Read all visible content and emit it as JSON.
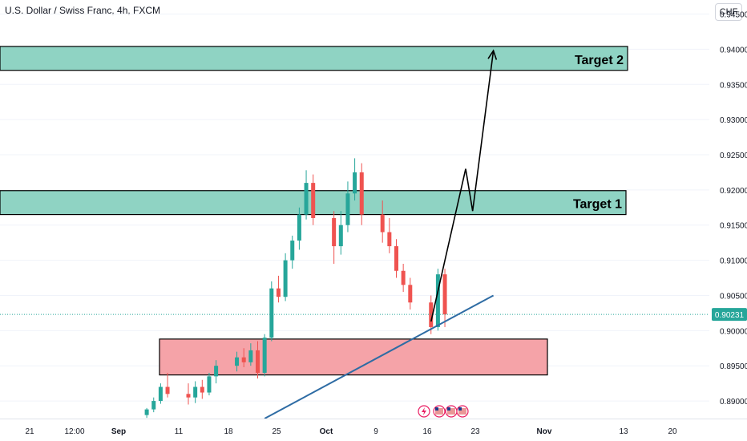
{
  "title": "U.S. Dollar / Swiss Franc, 4h, FXCM",
  "currency": "CHF",
  "colors": {
    "up": "#26a69a",
    "down": "#ef5350",
    "zone_target": "#8fd3c3",
    "zone_support": "#f5a3a8",
    "trendline": "#2e6ca4",
    "price_line": "#26a69a",
    "price_badge": "#26a69a",
    "event_icon": "#e91e63"
  },
  "chart_data": {
    "type": "candlestick",
    "ylim": [
      0.8875,
      0.947
    ],
    "y_ticks": [
      "0.94500",
      "0.94000",
      "0.93500",
      "0.93000",
      "0.92500",
      "0.92000",
      "0.91500",
      "0.91000",
      "0.90500",
      "0.90000",
      "0.89500",
      "0.89000"
    ],
    "x_ticks": [
      "21",
      "12:00",
      "Sep",
      "11",
      "18",
      "25",
      "Oct",
      "9",
      "16",
      "23",
      "Nov",
      "13",
      "20"
    ],
    "current_price": "0.90231",
    "zones": [
      {
        "label": "Target 2",
        "low": 0.937,
        "high": 0.9404,
        "kind": "target"
      },
      {
        "label": "Target 1",
        "low": 0.9165,
        "high": 0.9199,
        "kind": "target"
      },
      {
        "label": "",
        "low": 0.8937,
        "high": 0.8988,
        "kind": "support"
      }
    ],
    "trendline": {
      "x_start": "Sep 22",
      "y_start": 0.8875,
      "x_end": "Oct 25",
      "y_end": 0.905
    },
    "projection": [
      {
        "x": "Oct 16",
        "y": 0.9013
      },
      {
        "x": "Oct 21",
        "y": 0.923
      },
      {
        "x": "Oct 22",
        "y": 0.917
      },
      {
        "x": "Oct 25",
        "y": 0.9398
      }
    ],
    "candles": [
      {
        "d": "Sep 5",
        "o": 0.888,
        "h": 0.889,
        "l": 0.8876,
        "c": 0.8888
      },
      {
        "d": "Sep 6",
        "o": 0.8888,
        "h": 0.8905,
        "l": 0.8884,
        "c": 0.89
      },
      {
        "d": "Sep 7",
        "o": 0.89,
        "h": 0.8925,
        "l": 0.8896,
        "c": 0.892
      },
      {
        "d": "Sep 8",
        "o": 0.892,
        "h": 0.894,
        "l": 0.8905,
        "c": 0.891
      },
      {
        "d": "Sep 11",
        "o": 0.891,
        "h": 0.8925,
        "l": 0.8895,
        "c": 0.8905
      },
      {
        "d": "Sep 12",
        "o": 0.8905,
        "h": 0.8928,
        "l": 0.8897,
        "c": 0.892
      },
      {
        "d": "Sep 13",
        "o": 0.892,
        "h": 0.893,
        "l": 0.8903,
        "c": 0.8912
      },
      {
        "d": "Sep 14",
        "o": 0.8912,
        "h": 0.894,
        "l": 0.8908,
        "c": 0.8935
      },
      {
        "d": "Sep 15",
        "o": 0.8935,
        "h": 0.8958,
        "l": 0.8925,
        "c": 0.895
      },
      {
        "d": "Sep 18",
        "o": 0.895,
        "h": 0.897,
        "l": 0.8942,
        "c": 0.8962
      },
      {
        "d": "Sep 19",
        "o": 0.8962,
        "h": 0.8975,
        "l": 0.8948,
        "c": 0.8955
      },
      {
        "d": "Sep 20",
        "o": 0.8955,
        "h": 0.8982,
        "l": 0.895,
        "c": 0.8972
      },
      {
        "d": "Sep 21",
        "o": 0.8972,
        "h": 0.8985,
        "l": 0.8932,
        "c": 0.894
      },
      {
        "d": "Sep 22",
        "o": 0.894,
        "h": 0.8995,
        "l": 0.8935,
        "c": 0.899
      },
      {
        "d": "Sep 23",
        "o": 0.899,
        "h": 0.907,
        "l": 0.8985,
        "c": 0.906
      },
      {
        "d": "Sep 24",
        "o": 0.906,
        "h": 0.9078,
        "l": 0.904,
        "c": 0.9048
      },
      {
        "d": "Sep 25",
        "o": 0.9048,
        "h": 0.911,
        "l": 0.9042,
        "c": 0.91
      },
      {
        "d": "Sep 26",
        "o": 0.91,
        "h": 0.9135,
        "l": 0.9088,
        "c": 0.9128
      },
      {
        "d": "Sep 27",
        "o": 0.9128,
        "h": 0.9175,
        "l": 0.9115,
        "c": 0.9165
      },
      {
        "d": "Sep 28",
        "o": 0.9165,
        "h": 0.9228,
        "l": 0.9158,
        "c": 0.921
      },
      {
        "d": "Sep 29",
        "o": 0.921,
        "h": 0.9222,
        "l": 0.915,
        "c": 0.916
      },
      {
        "d": "Oct 2",
        "o": 0.916,
        "h": 0.917,
        "l": 0.9095,
        "c": 0.912
      },
      {
        "d": "Oct 3",
        "o": 0.912,
        "h": 0.917,
        "l": 0.9108,
        "c": 0.915
      },
      {
        "d": "Oct 4",
        "o": 0.915,
        "h": 0.9212,
        "l": 0.914,
        "c": 0.9195
      },
      {
        "d": "Oct 5",
        "o": 0.9195,
        "h": 0.9245,
        "l": 0.9185,
        "c": 0.9225
      },
      {
        "d": "Oct 6",
        "o": 0.9225,
        "h": 0.9238,
        "l": 0.915,
        "c": 0.9165
      },
      {
        "d": "Oct 9",
        "o": 0.9165,
        "h": 0.9185,
        "l": 0.9125,
        "c": 0.914
      },
      {
        "d": "Oct 10",
        "o": 0.914,
        "h": 0.916,
        "l": 0.911,
        "c": 0.912
      },
      {
        "d": "Oct 11",
        "o": 0.912,
        "h": 0.913,
        "l": 0.9075,
        "c": 0.9085
      },
      {
        "d": "Oct 12",
        "o": 0.9085,
        "h": 0.9095,
        "l": 0.9055,
        "c": 0.9065
      },
      {
        "d": "Oct 13",
        "o": 0.9065,
        "h": 0.9075,
        "l": 0.903,
        "c": 0.904
      },
      {
        "d": "Oct 16",
        "o": 0.904,
        "h": 0.905,
        "l": 0.8995,
        "c": 0.9005
      },
      {
        "d": "Oct 17",
        "o": 0.9005,
        "h": 0.9088,
        "l": 0.9,
        "c": 0.908
      },
      {
        "d": "Oct 18",
        "o": 0.908,
        "h": 0.9088,
        "l": 0.9005,
        "c": 0.9023
      }
    ]
  }
}
